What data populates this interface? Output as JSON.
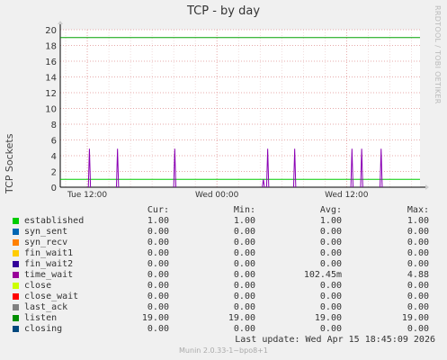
{
  "chart_data": {
    "type": "line",
    "title": "TCP - by day",
    "ylabel": "TCP Sockets",
    "ylim": [
      0,
      20
    ],
    "y_ticks": [
      "0",
      "2",
      "4",
      "6",
      "8",
      "10",
      "12",
      "14",
      "16",
      "18",
      "20"
    ],
    "x_ticks": [
      "Tue 12:00",
      "Wed 00:00",
      "Wed 12:00"
    ],
    "grid": true,
    "series": [
      {
        "name": "listen",
        "color": "#00A000",
        "constant": 19
      },
      {
        "name": "established",
        "color": "#00CC00",
        "constant": 1
      },
      {
        "name": "time_wait",
        "color": "#8A00B4",
        "spikes": [
          {
            "hours_after_tue_0930": 2.7,
            "value": 4.88
          },
          {
            "hours_after_tue_0930": 5.3,
            "value": 4.88
          },
          {
            "hours_after_tue_0930": 10.6,
            "value": 4.88
          },
          {
            "hours_after_tue_0930": 18.8,
            "value": 1.0
          },
          {
            "hours_after_tue_0930": 19.2,
            "value": 4.88
          },
          {
            "hours_after_tue_0930": 21.7,
            "value": 4.88
          },
          {
            "hours_after_tue_0930": 27.0,
            "value": 4.88
          },
          {
            "hours_after_tue_0930": 27.9,
            "value": 4.88
          },
          {
            "hours_after_tue_0930": 29.7,
            "value": 4.88
          }
        ]
      }
    ]
  },
  "side_credit": "RRDTOOL / TOBI OETIKER",
  "legend": {
    "headers": {
      "cur": "Cur:",
      "min": "Min:",
      "avg": "Avg:",
      "max": "Max:"
    },
    "rows": [
      {
        "name": "established",
        "color": "#00CC00",
        "cur": "1.00",
        "min": "1.00",
        "avg": "1.00",
        "max": "1.00"
      },
      {
        "name": "syn_sent",
        "color": "#0066B3",
        "cur": "0.00",
        "min": "0.00",
        "avg": "0.00",
        "max": "0.00"
      },
      {
        "name": "syn_recv",
        "color": "#FF8000",
        "cur": "0.00",
        "min": "0.00",
        "avg": "0.00",
        "max": "0.00"
      },
      {
        "name": "fin_wait1",
        "color": "#FFCC00",
        "cur": "0.00",
        "min": "0.00",
        "avg": "0.00",
        "max": "0.00"
      },
      {
        "name": "fin_wait2",
        "color": "#330099",
        "cur": "0.00",
        "min": "0.00",
        "avg": "0.00",
        "max": "0.00"
      },
      {
        "name": "time_wait",
        "color": "#990099",
        "cur": "0.00",
        "min": "0.00",
        "avg": "102.45m",
        "max": "4.88"
      },
      {
        "name": "close",
        "color": "#CCFF00",
        "cur": "0.00",
        "min": "0.00",
        "avg": "0.00",
        "max": "0.00"
      },
      {
        "name": "close_wait",
        "color": "#FF0000",
        "cur": "0.00",
        "min": "0.00",
        "avg": "0.00",
        "max": "0.00"
      },
      {
        "name": "last_ack",
        "color": "#808080",
        "cur": "0.00",
        "min": "0.00",
        "avg": "0.00",
        "max": "0.00"
      },
      {
        "name": "listen",
        "color": "#008F00",
        "cur": "19.00",
        "min": "19.00",
        "avg": "19.00",
        "max": "19.00"
      },
      {
        "name": "closing",
        "color": "#00487D",
        "cur": "0.00",
        "min": "0.00",
        "avg": "0.00",
        "max": "0.00"
      }
    ]
  },
  "last_update": "Last update:  Wed Apr 15 18:45:09 2026",
  "version": "Munin 2.0.33-1~bpo8+1"
}
